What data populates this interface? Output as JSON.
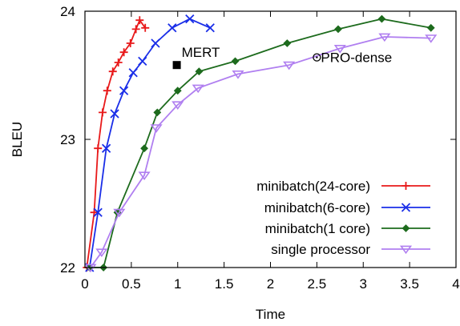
{
  "chart_data": {
    "type": "line",
    "xlabel": "Time",
    "ylabel": "BLEU",
    "xlim": [
      0,
      4
    ],
    "ylim": [
      22,
      24
    ],
    "xticks": [
      0,
      0.5,
      1,
      1.5,
      2,
      2.5,
      3,
      3.5,
      4
    ],
    "xtick_labels": [
      "0",
      "0.5",
      "1",
      "1.5",
      "2",
      "2.5",
      "3",
      "3.5",
      "4"
    ],
    "yticks": [
      22,
      23,
      24
    ],
    "ytick_labels": [
      "22",
      "23",
      "24"
    ],
    "grid": false,
    "legend_position": "lower-right",
    "series": [
      {
        "name": "minibatch(24-core)",
        "color": "#e8191a",
        "marker": "plus",
        "x": [
          0.02,
          0.1,
          0.14,
          0.19,
          0.24,
          0.3,
          0.36,
          0.42,
          0.49,
          0.55,
          0.59,
          0.65
        ],
        "y": [
          22.0,
          22.43,
          22.93,
          23.21,
          23.38,
          23.53,
          23.6,
          23.68,
          23.75,
          23.86,
          23.93,
          23.87
        ]
      },
      {
        "name": "minibatch(6-core)",
        "color": "#1a2ee8",
        "marker": "x",
        "x": [
          0.05,
          0.14,
          0.23,
          0.32,
          0.42,
          0.52,
          0.62,
          0.76,
          0.94,
          1.13,
          1.35
        ],
        "y": [
          22.0,
          22.43,
          22.93,
          23.2,
          23.38,
          23.52,
          23.61,
          23.75,
          23.87,
          23.94,
          23.87
        ]
      },
      {
        "name": "minibatch(1 core)",
        "color": "#1d6b1d",
        "marker": "diamond",
        "x": [
          0.05,
          0.2,
          0.35,
          0.64,
          0.78,
          1.0,
          1.23,
          1.62,
          2.18,
          2.73,
          3.2,
          3.73
        ],
        "y": [
          22.0,
          22.0,
          22.43,
          22.93,
          23.21,
          23.38,
          23.53,
          23.61,
          23.75,
          23.86,
          23.94,
          23.87
        ]
      },
      {
        "name": "single processor",
        "color": "#b07ff0",
        "marker": "triangle-down",
        "x": [
          0.06,
          0.18,
          0.37,
          0.64,
          0.77,
          1.0,
          1.22,
          1.65,
          2.2,
          2.75,
          3.23,
          3.73
        ],
        "y": [
          22.0,
          22.12,
          22.43,
          22.72,
          23.09,
          23.27,
          23.4,
          23.51,
          23.58,
          23.71,
          23.8,
          23.79
        ]
      }
    ],
    "annotations": [
      {
        "label": "MERT",
        "x": 0.99,
        "y": 23.58,
        "marker": "square"
      },
      {
        "label": "PRO-dense",
        "x": 2.5,
        "y": 23.64,
        "marker": "circle-dot"
      }
    ]
  }
}
